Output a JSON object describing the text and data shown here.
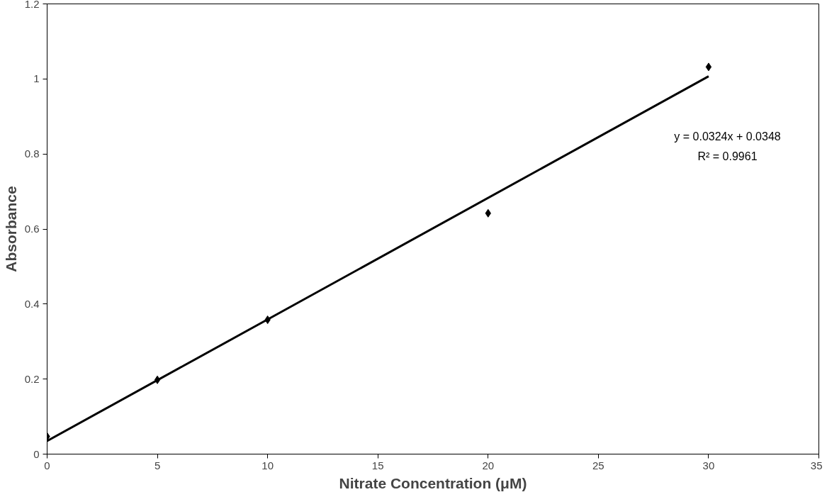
{
  "chart_data": {
    "type": "scatter",
    "xlabel": "Nitrate Concentration (μM)",
    "ylabel": "Absorbance",
    "x": [
      0,
      5,
      10,
      20,
      30
    ],
    "series": [
      {
        "color": "#000000",
        "marker": "diamond",
        "values": [
          0.047,
          0.198,
          0.358,
          0.642,
          1.032
        ]
      },
      {
        "type": "line",
        "color": "#000000",
        "marker": "none",
        "line_style": "solid",
        "x": [
          0,
          30
        ],
        "values": [
          0.035,
          1.007
        ]
      }
    ],
    "annotations": [
      "y = 0.0324x + 0.0348",
      "R² = 0.9961"
    ],
    "xlim": [
      0,
      35
    ],
    "xticks": [
      0,
      5,
      10,
      15,
      20,
      25,
      30,
      35
    ],
    "ylim": [
      0,
      1.2
    ],
    "yticks": [
      0,
      0.2,
      0.4,
      0.6,
      0.8,
      1,
      1.2
    ],
    "grid": false
  }
}
